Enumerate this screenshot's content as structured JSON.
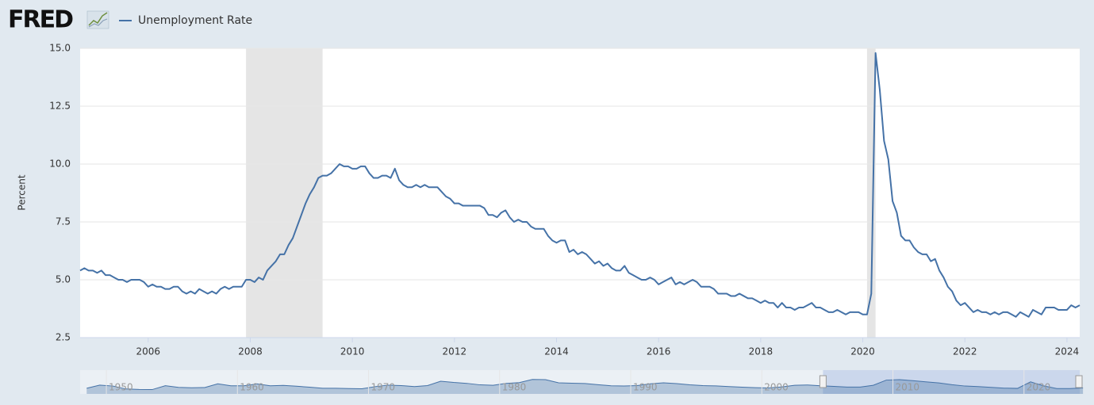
{
  "chart_data": {
    "type": "line",
    "logo": "FRED",
    "y_label": "Percent",
    "series": [
      {
        "name": "Unemployment Rate",
        "color": "#4572a7",
        "values": [
          5.4,
          5.5,
          5.4,
          5.4,
          5.3,
          5.4,
          5.2,
          5.2,
          5.1,
          5.0,
          5.0,
          4.9,
          5.0,
          5.0,
          5.0,
          4.9,
          4.7,
          4.8,
          4.7,
          4.7,
          4.6,
          4.6,
          4.7,
          4.7,
          4.5,
          4.4,
          4.5,
          4.4,
          4.6,
          4.5,
          4.4,
          4.5,
          4.4,
          4.6,
          4.7,
          4.6,
          4.7,
          4.7,
          4.7,
          5.0,
          5.0,
          4.9,
          5.1,
          5.0,
          5.4,
          5.6,
          5.8,
          6.1,
          6.1,
          6.5,
          6.8,
          7.3,
          7.8,
          8.3,
          8.7,
          9.0,
          9.4,
          9.5,
          9.5,
          9.6,
          9.8,
          10.0,
          9.9,
          9.9,
          9.8,
          9.8,
          9.9,
          9.9,
          9.6,
          9.4,
          9.4,
          9.5,
          9.5,
          9.4,
          9.8,
          9.3,
          9.1,
          9.0,
          9.0,
          9.1,
          9.0,
          9.1,
          9.0,
          9.0,
          9.0,
          8.8,
          8.6,
          8.5,
          8.3,
          8.3,
          8.2,
          8.2,
          8.2,
          8.2,
          8.2,
          8.1,
          7.8,
          7.8,
          7.7,
          7.9,
          8.0,
          7.7,
          7.5,
          7.6,
          7.5,
          7.5,
          7.3,
          7.2,
          7.2,
          7.2,
          6.9,
          6.7,
          6.6,
          6.7,
          6.7,
          6.2,
          6.3,
          6.1,
          6.2,
          6.1,
          5.9,
          5.7,
          5.8,
          5.6,
          5.7,
          5.5,
          5.4,
          5.4,
          5.6,
          5.3,
          5.2,
          5.1,
          5.0,
          5.0,
          5.1,
          5.0,
          4.8,
          4.9,
          5.0,
          5.1,
          4.8,
          4.9,
          4.8,
          4.9,
          5.0,
          4.9,
          4.7,
          4.7,
          4.7,
          4.6,
          4.4,
          4.4,
          4.4,
          4.3,
          4.3,
          4.4,
          4.3,
          4.2,
          4.2,
          4.1,
          4.0,
          4.1,
          4.0,
          4.0,
          3.8,
          4.0,
          3.8,
          3.8,
          3.7,
          3.8,
          3.8,
          3.9,
          4.0,
          3.8,
          3.8,
          3.7,
          3.6,
          3.6,
          3.7,
          3.6,
          3.5,
          3.6,
          3.6,
          3.6,
          3.5,
          3.5,
          4.4,
          14.8,
          13.2,
          11.0,
          10.2,
          8.4,
          7.9,
          6.9,
          6.7,
          6.7,
          6.4,
          6.2,
          6.1,
          6.1,
          5.8,
          5.9,
          5.4,
          5.1,
          4.7,
          4.5,
          4.1,
          3.9,
          4.0,
          3.8,
          3.6,
          3.7,
          3.6,
          3.6,
          3.5,
          3.6,
          3.5,
          3.6,
          3.6,
          3.5,
          3.4,
          3.6,
          3.5,
          3.4,
          3.7,
          3.6,
          3.5,
          3.8,
          3.8,
          3.8,
          3.7,
          3.7,
          3.7,
          3.9,
          3.8,
          3.9
        ]
      }
    ],
    "x": [
      "2004-09",
      "2004-10",
      "2004-11",
      "2004-12",
      "2005-01",
      "2005-02",
      "2005-03",
      "2005-04",
      "2005-05",
      "2005-06",
      "2005-07",
      "2005-08",
      "2005-09",
      "2005-10",
      "2005-11",
      "2005-12",
      "2006-01",
      "2006-02",
      "2006-03",
      "2006-04",
      "2006-05",
      "2006-06",
      "2006-07",
      "2006-08",
      "2006-09",
      "2006-10",
      "2006-11",
      "2006-12",
      "2007-01",
      "2007-02",
      "2007-03",
      "2007-04",
      "2007-05",
      "2007-06",
      "2007-07",
      "2007-08",
      "2007-09",
      "2007-10",
      "2007-11",
      "2007-12",
      "2008-01",
      "2008-02",
      "2008-03",
      "2008-04",
      "2008-05",
      "2008-06",
      "2008-07",
      "2008-08",
      "2008-09",
      "2008-10",
      "2008-11",
      "2008-12",
      "2009-01",
      "2009-02",
      "2009-03",
      "2009-04",
      "2009-05",
      "2009-06",
      "2009-07",
      "2009-08",
      "2009-09",
      "2009-10",
      "2009-11",
      "2009-12",
      "2010-01",
      "2010-02",
      "2010-03",
      "2010-04",
      "2010-05",
      "2010-06",
      "2010-07",
      "2010-08",
      "2010-09",
      "2010-10",
      "2010-11",
      "2010-12",
      "2011-01",
      "2011-02",
      "2011-03",
      "2011-04",
      "2011-05",
      "2011-06",
      "2011-07",
      "2011-08",
      "2011-09",
      "2011-10",
      "2011-11",
      "2011-12",
      "2012-01",
      "2012-02",
      "2012-03",
      "2012-04",
      "2012-05",
      "2012-06",
      "2012-07",
      "2012-08",
      "2012-09",
      "2012-10",
      "2012-11",
      "2012-12",
      "2013-01",
      "2013-02",
      "2013-03",
      "2013-04",
      "2013-05",
      "2013-06",
      "2013-07",
      "2013-08",
      "2013-09",
      "2013-10",
      "2013-11",
      "2013-12",
      "2014-01",
      "2014-02",
      "2014-03",
      "2014-04",
      "2014-05",
      "2014-06",
      "2014-07",
      "2014-08",
      "2014-09",
      "2014-10",
      "2014-11",
      "2014-12",
      "2015-01",
      "2015-02",
      "2015-03",
      "2015-04",
      "2015-05",
      "2015-06",
      "2015-07",
      "2015-08",
      "2015-09",
      "2015-10",
      "2015-11",
      "2015-12",
      "2016-01",
      "2016-02",
      "2016-03",
      "2016-04",
      "2016-05",
      "2016-06",
      "2016-07",
      "2016-08",
      "2016-09",
      "2016-10",
      "2016-11",
      "2016-12",
      "2017-01",
      "2017-02",
      "2017-03",
      "2017-04",
      "2017-05",
      "2017-06",
      "2017-07",
      "2017-08",
      "2017-09",
      "2017-10",
      "2017-11",
      "2017-12",
      "2018-01",
      "2018-02",
      "2018-03",
      "2018-04",
      "2018-05",
      "2018-06",
      "2018-07",
      "2018-08",
      "2018-09",
      "2018-10",
      "2018-11",
      "2018-12",
      "2019-01",
      "2019-02",
      "2019-03",
      "2019-04",
      "2019-05",
      "2019-06",
      "2019-07",
      "2019-08",
      "2019-09",
      "2019-10",
      "2019-11",
      "2019-12",
      "2020-01",
      "2020-02",
      "2020-03",
      "2020-04",
      "2020-05",
      "2020-06",
      "2020-07",
      "2020-08",
      "2020-09",
      "2020-10",
      "2020-11",
      "2020-12",
      "2021-01",
      "2021-02",
      "2021-03",
      "2021-04",
      "2021-05",
      "2021-06",
      "2021-07",
      "2021-08",
      "2021-09",
      "2021-10",
      "2021-11",
      "2021-12",
      "2022-01",
      "2022-02",
      "2022-03",
      "2022-04",
      "2022-05",
      "2022-06",
      "2022-07",
      "2022-08",
      "2022-09",
      "2022-10",
      "2022-11",
      "2022-12",
      "2023-01",
      "2023-02",
      "2023-03",
      "2023-04",
      "2023-05",
      "2023-06",
      "2023-07",
      "2023-08",
      "2023-09",
      "2023-10",
      "2023-11",
      "2023-12",
      "2024-01",
      "2024-02",
      "2024-03",
      "2024-04"
    ],
    "xlim": [
      "2004-09",
      "2024-04"
    ],
    "xticks": [
      2006,
      2008,
      2010,
      2012,
      2014,
      2016,
      2018,
      2020,
      2022,
      2024
    ],
    "ylim": [
      2.5,
      15
    ],
    "yticks": [
      2.5,
      {
        "value": 5,
        "label": "5.0"
      },
      7.5,
      {
        "value": 10,
        "label": "10.0"
      },
      12.5,
      {
        "value": 15,
        "label": "15.0"
      }
    ],
    "grid": true,
    "recessions": [
      [
        "2007-12",
        "2009-06"
      ],
      [
        "2020-02",
        "2020-04"
      ]
    ],
    "recession_color": "#e5e5e5",
    "navigator": {
      "years": [
        1948,
        1949,
        1950,
        1951,
        1952,
        1953,
        1954,
        1955,
        1956,
        1957,
        1958,
        1959,
        1960,
        1961,
        1962,
        1963,
        1964,
        1965,
        1966,
        1967,
        1968,
        1969,
        1970,
        1971,
        1972,
        1973,
        1974,
        1975,
        1976,
        1977,
        1978,
        1979,
        1980,
        1981,
        1982,
        1983,
        1984,
        1985,
        1986,
        1987,
        1988,
        1989,
        1990,
        1991,
        1992,
        1993,
        1994,
        1995,
        1996,
        1997,
        1998,
        1999,
        2000,
        2001,
        2002,
        2003,
        2004,
        2005,
        2006,
        2007,
        2008,
        2009,
        2010,
        2011,
        2012,
        2013,
        2014,
        2015,
        2016,
        2017,
        2018,
        2019,
        2020,
        2021,
        2022,
        2023,
        2024
      ],
      "values": [
        3.8,
        5.9,
        5.3,
        3.3,
        3.0,
        2.9,
        5.5,
        4.4,
        4.1,
        4.3,
        6.8,
        5.5,
        5.5,
        6.7,
        5.5,
        5.7,
        5.2,
        4.5,
        3.8,
        3.8,
        3.6,
        3.5,
        4.9,
        5.9,
        5.6,
        4.9,
        5.6,
        8.5,
        7.7,
        7.1,
        6.1,
        5.8,
        7.1,
        7.6,
        9.7,
        9.6,
        7.5,
        7.2,
        7.0,
        6.2,
        5.5,
        5.3,
        5.6,
        6.8,
        7.5,
        6.9,
        6.1,
        5.6,
        5.4,
        4.9,
        4.5,
        4.2,
        4.0,
        4.7,
        5.8,
        6.0,
        5.5,
        5.1,
        4.6,
        4.6,
        5.8,
        9.3,
        9.6,
        8.9,
        8.1,
        7.4,
        6.2,
        5.3,
        4.9,
        4.4,
        3.9,
        3.7,
        8.1,
        5.4,
        3.6,
        3.6,
        4.0
      ],
      "ticks": [
        1950,
        1960,
        1970,
        1980,
        1990,
        2000,
        2010,
        2020
      ],
      "ylim": [
        0,
        16
      ]
    }
  }
}
